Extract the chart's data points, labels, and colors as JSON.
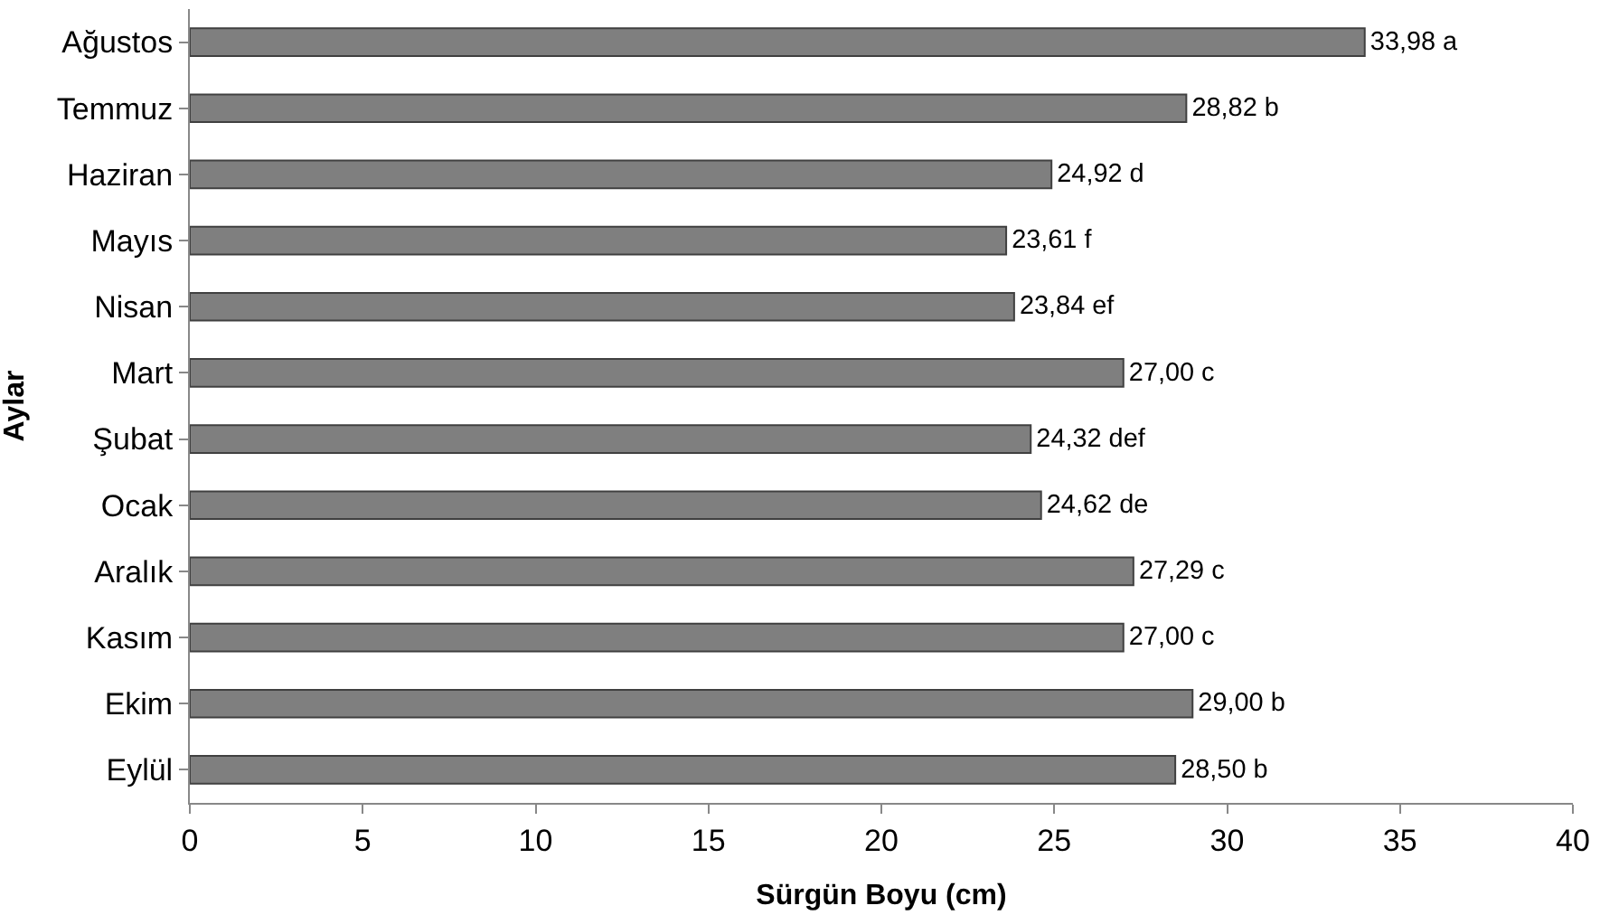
{
  "chart_data": {
    "type": "bar",
    "orientation": "horizontal",
    "xlabel": "Sürgün Boyu (cm)",
    "ylabel": "Aylar",
    "categories": [
      "Ağustos",
      "Temmuz",
      "Haziran",
      "Mayıs",
      "Nisan",
      "Mart",
      "Şubat",
      "Ocak",
      "Aralık",
      "Kasım",
      "Ekim",
      "Eylül"
    ],
    "values": [
      33.98,
      28.82,
      24.92,
      23.61,
      23.84,
      27.0,
      24.32,
      24.62,
      27.29,
      27.0,
      29.0,
      28.5
    ],
    "value_labels": [
      "33,98 a",
      "28,82 b",
      "24,92 d",
      "23,61 f",
      "23,84 ef",
      "27,00 c",
      "24,32 def",
      "24,62 de",
      "27,29 c",
      "27,00 c",
      "29,00 b",
      "28,50 b"
    ],
    "color": "#7f7f7f",
    "xlim": [
      0,
      40
    ],
    "xticks": [
      0,
      5,
      10,
      15,
      20,
      25,
      30,
      35,
      40
    ]
  }
}
